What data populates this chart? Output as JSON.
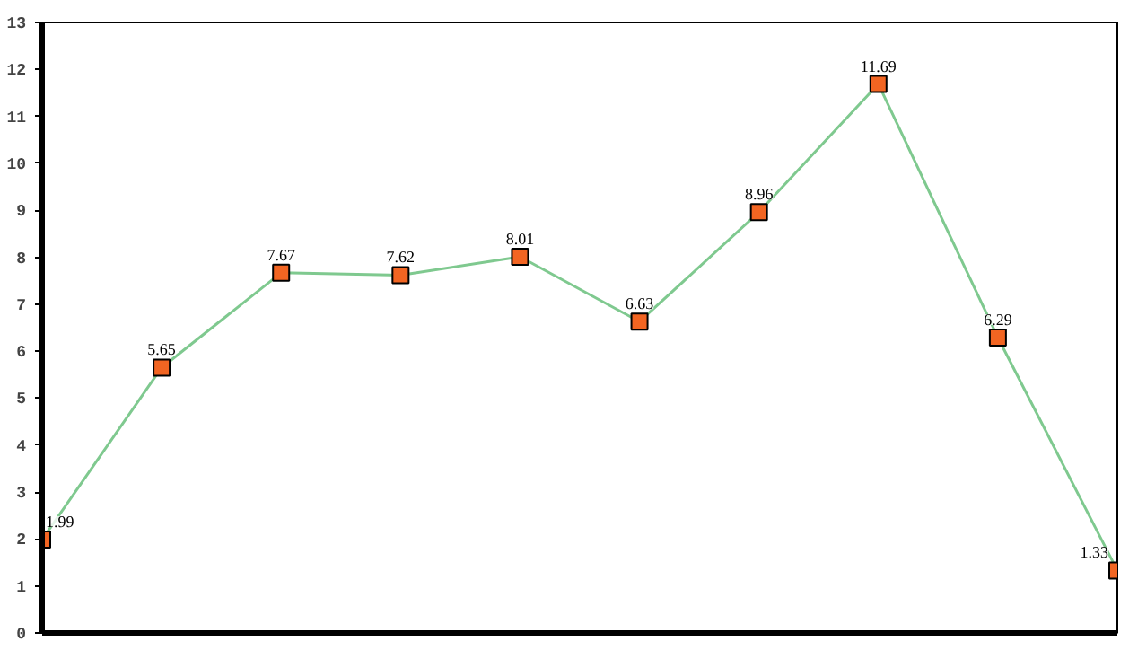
{
  "chart_data": {
    "type": "line",
    "categories": [
      null,
      null,
      null,
      null,
      null,
      null,
      null,
      null,
      null,
      null
    ],
    "series": [
      {
        "color": "#7fc98f",
        "colors": [
          "#f26522",
          "#f26522",
          "#f26522",
          "#f26522",
          "#f26522",
          "#f26522",
          "#f26522",
          "#f26522",
          "#f26522",
          "#f26522"
        ],
        "values": [
          1.99,
          5.65,
          7.67,
          7.62,
          8.01,
          6.63,
          8.96,
          11.69,
          6.29,
          1.33
        ]
      }
    ],
    "marker": "square",
    "data_labels": true,
    "ylim": [
      0,
      13
    ],
    "yticks": [
      0,
      1,
      2,
      3,
      4,
      5,
      6,
      7,
      8,
      9,
      10,
      11,
      12,
      13
    ],
    "tick_labels": "y",
    "grid": false
  }
}
